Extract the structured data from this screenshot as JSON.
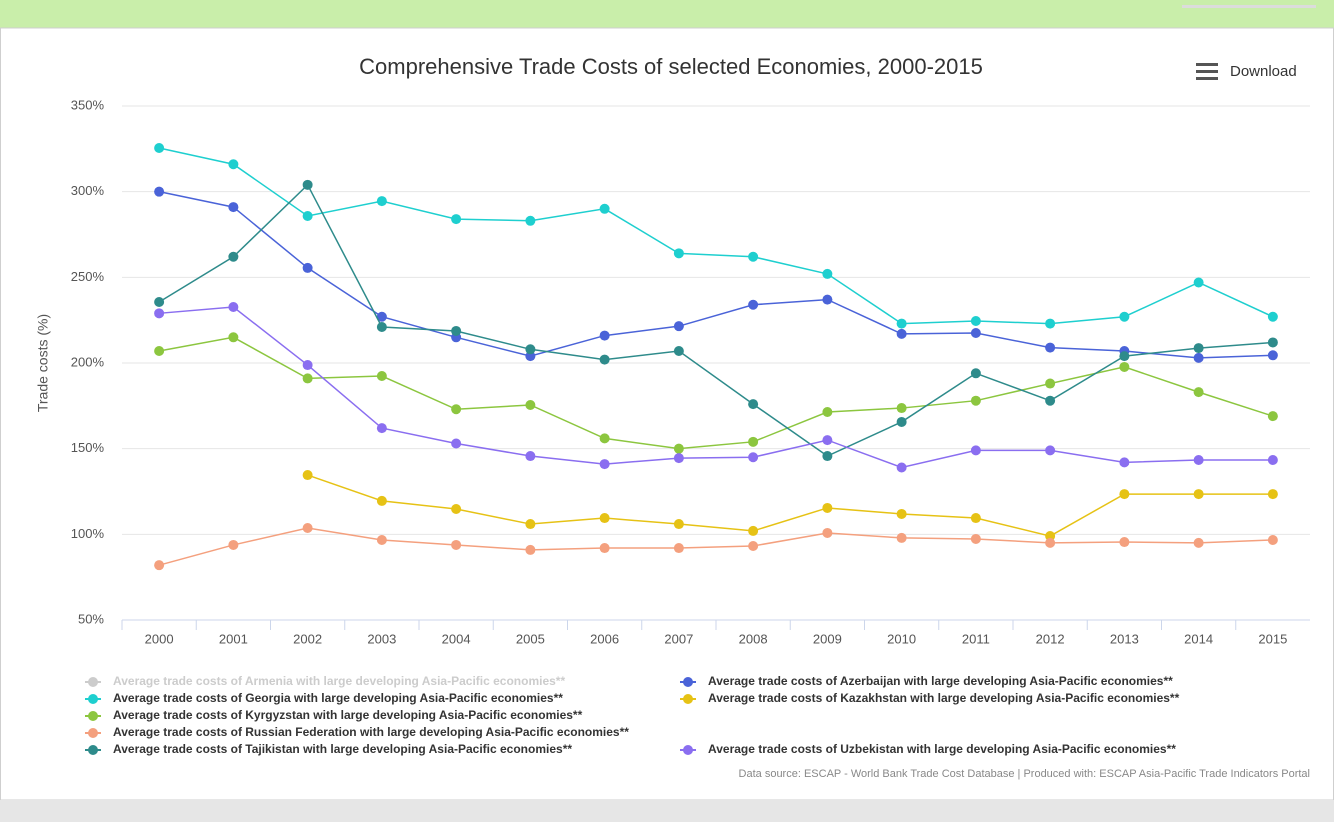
{
  "chart_data": {
    "type": "line",
    "title": "Comprehensive Trade Costs of selected Economies, 2000-2015",
    "download_label": "Download",
    "y_label": "Trade costs (%)",
    "credits": "Data source: ESCAP - World Bank Trade Cost Database | Produced with: ESCAP Asia-Pacific Trade Indicators Portal",
    "categories": [
      "2000",
      "2001",
      "2002",
      "2003",
      "2004",
      "2005",
      "2006",
      "2007",
      "2008",
      "2009",
      "2010",
      "2011",
      "2012",
      "2013",
      "2014",
      "2015"
    ],
    "ylim": [
      50,
      350
    ],
    "yticks": [
      {
        "value": 50,
        "label": "50%"
      },
      {
        "value": 100,
        "label": "100%"
      },
      {
        "value": 150,
        "label": "150%"
      },
      {
        "value": 200,
        "label": "200%"
      },
      {
        "value": 250,
        "label": "250%"
      },
      {
        "value": 300,
        "label": "300%"
      },
      {
        "value": 350,
        "label": "350%"
      }
    ],
    "grid": true,
    "series": [
      {
        "name": "Average trade costs of Armenia with large developing Asia-Pacific economies**",
        "color": "#cccccc",
        "visible": false,
        "values": [
          null,
          null,
          null,
          null,
          null,
          null,
          null,
          null,
          null,
          null,
          null,
          null,
          null,
          null,
          null,
          null
        ]
      },
      {
        "name": "Average trade costs of Azerbaijan with large developing Asia-Pacific economies**",
        "color": "#4a63d8",
        "values": [
          300,
          291,
          255.5,
          227,
          215,
          204,
          216,
          221.5,
          234,
          237,
          217,
          217.5,
          209,
          207,
          203,
          204.5
        ]
      },
      {
        "name": "Average trade costs of Georgia with large developing Asia-Pacific economies**",
        "color": "#1ecfcf",
        "values": [
          325.5,
          316,
          285.8,
          294.5,
          284,
          283,
          290,
          264,
          262,
          252,
          223,
          224.5,
          223,
          227,
          247,
          227
        ]
      },
      {
        "name": "Average trade costs of Kazakhstan with large developing Asia-Pacific economies**",
        "color": "#e6c215",
        "values": [
          null,
          null,
          134.6,
          119.5,
          114.8,
          106,
          109.5,
          106,
          102,
          115.4,
          111.9,
          109.5,
          99,
          123.5,
          123.5,
          123.5
        ]
      },
      {
        "name": "Average trade costs of Kyrgyzstan with large developing Asia-Pacific economies**",
        "color": "#8cc63f",
        "values": [
          207,
          215,
          191,
          192.4,
          173,
          175.5,
          156,
          150,
          154,
          171.4,
          173.7,
          178,
          188,
          197.7,
          183,
          169
        ]
      },
      {
        "name": "Average trade costs of Russian Federation with large developing Asia-Pacific economies**",
        "color": "#f4a07e",
        "values": [
          82,
          93.8,
          103.7,
          96.7,
          93.8,
          90.9,
          92,
          92,
          93.2,
          100.8,
          97.9,
          97.3,
          95,
          95.5,
          95,
          96.7
        ]
      },
      {
        "name": "Average trade costs of Tajikistan with large developing Asia-Pacific economies**",
        "color": "#2e8b8b",
        "values": [
          235.6,
          262,
          304,
          221,
          218.7,
          208,
          202,
          207,
          176,
          145.7,
          165.6,
          194,
          178,
          204,
          208.7,
          212
        ]
      },
      {
        "name": "Average trade costs of Uzbekistan with large developing Asia-Pacific economies**",
        "color": "#8a6ef0",
        "values": [
          229,
          232.7,
          198.8,
          162,
          153,
          145.7,
          141,
          144.5,
          145,
          155,
          139,
          149,
          149,
          142,
          143.4,
          143.4
        ]
      }
    ]
  }
}
